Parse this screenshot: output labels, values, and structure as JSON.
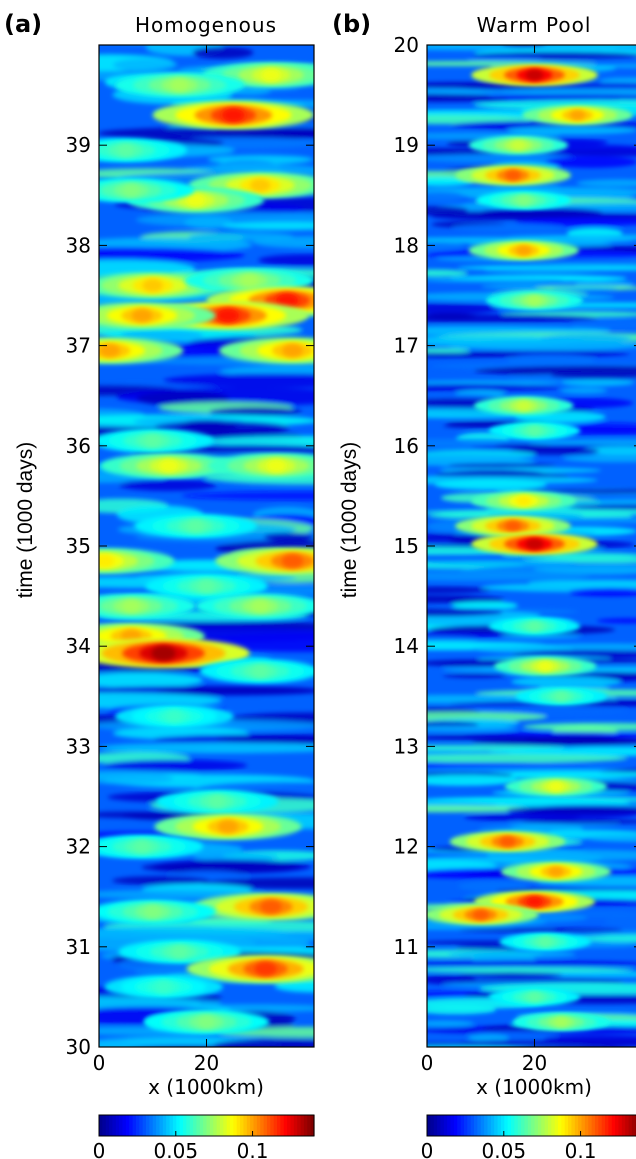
{
  "chart_data": [
    {
      "type": "heatmap",
      "panel_label": "(a)",
      "title": "Homogenous",
      "xlabel": "x (1000km)",
      "ylabel": "time (1000 days)",
      "xlim": [
        0,
        40
      ],
      "ylim": [
        30,
        40
      ],
      "xticks": [
        "0",
        "20"
      ],
      "yticks": [
        "30",
        "31",
        "32",
        "33",
        "34",
        "35",
        "36",
        "37",
        "38",
        "39"
      ],
      "colorbar": {
        "range": [
          0,
          0.14
        ],
        "ticks": [
          "0",
          "0.05",
          "0.1"
        ]
      },
      "colormap": [
        "#00008f",
        "#0000ff",
        "#0080ff",
        "#00ffff",
        "#80ff80",
        "#ffff00",
        "#ff8000",
        "#ff0000",
        "#800000"
      ],
      "blobs": [
        {
          "x": 25,
          "y": 39.3,
          "value": 0.12
        },
        {
          "x": 32,
          "y": 39.7,
          "value": 0.085
        },
        {
          "x": 15,
          "y": 39.6,
          "value": 0.075
        },
        {
          "x": 5,
          "y": 38.95,
          "value": 0.065
        },
        {
          "x": 30,
          "y": 38.6,
          "value": 0.095
        },
        {
          "x": 18,
          "y": 38.45,
          "value": 0.085
        },
        {
          "x": 6,
          "y": 38.55,
          "value": 0.07
        },
        {
          "x": 10,
          "y": 37.6,
          "value": 0.095
        },
        {
          "x": 28,
          "y": 37.65,
          "value": 0.075
        },
        {
          "x": 35,
          "y": 37.45,
          "value": 0.12
        },
        {
          "x": 24,
          "y": 37.3,
          "value": 0.12
        },
        {
          "x": 8,
          "y": 37.3,
          "value": 0.1
        },
        {
          "x": 36,
          "y": 36.95,
          "value": 0.1
        },
        {
          "x": 2,
          "y": 36.95,
          "value": 0.1
        },
        {
          "x": 10,
          "y": 36.05,
          "value": 0.065
        },
        {
          "x": 13,
          "y": 35.8,
          "value": 0.085
        },
        {
          "x": 33,
          "y": 35.8,
          "value": 0.085
        },
        {
          "x": 18,
          "y": 35.2,
          "value": 0.065
        },
        {
          "x": 36,
          "y": 34.85,
          "value": 0.11
        },
        {
          "x": 1,
          "y": 34.85,
          "value": 0.09
        },
        {
          "x": 20,
          "y": 34.6,
          "value": 0.065
        },
        {
          "x": 30,
          "y": 34.4,
          "value": 0.075
        },
        {
          "x": 6,
          "y": 34.4,
          "value": 0.075
        },
        {
          "x": 6,
          "y": 34.1,
          "value": 0.1
        },
        {
          "x": 12,
          "y": 33.93,
          "value": 0.135
        },
        {
          "x": 30,
          "y": 33.75,
          "value": 0.065
        },
        {
          "x": 14,
          "y": 33.3,
          "value": 0.06
        },
        {
          "x": 22,
          "y": 32.45,
          "value": 0.065
        },
        {
          "x": 24,
          "y": 32.2,
          "value": 0.1
        },
        {
          "x": 8,
          "y": 32.0,
          "value": 0.065
        },
        {
          "x": 32,
          "y": 31.4,
          "value": 0.11
        },
        {
          "x": 10,
          "y": 31.35,
          "value": 0.07
        },
        {
          "x": 15,
          "y": 30.95,
          "value": 0.065
        },
        {
          "x": 31,
          "y": 30.78,
          "value": 0.115
        },
        {
          "x": 20,
          "y": 30.25,
          "value": 0.07
        },
        {
          "x": 12,
          "y": 30.6,
          "value": 0.06
        }
      ]
    },
    {
      "type": "heatmap",
      "panel_label": "(b)",
      "title": "Warm Pool",
      "xlabel": "x (1000km)",
      "ylabel": "time (1000 days)",
      "xlim": [
        0,
        40
      ],
      "ylim": [
        10,
        20
      ],
      "xticks": [
        "0",
        "20"
      ],
      "yticks": [
        "11",
        "12",
        "13",
        "14",
        "15",
        "16",
        "17",
        "18",
        "19",
        "20"
      ],
      "colorbar": {
        "range": [
          0,
          0.14
        ],
        "ticks": [
          "0",
          "0.05",
          "0.1"
        ]
      },
      "colormap": [
        "#00008f",
        "#0000ff",
        "#0080ff",
        "#00ffff",
        "#80ff80",
        "#ffff00",
        "#ff8000",
        "#ff0000",
        "#800000"
      ],
      "blobs": [
        {
          "x": 20,
          "y": 19.7,
          "value": 0.13
        },
        {
          "x": 28,
          "y": 19.3,
          "value": 0.1
        },
        {
          "x": 17,
          "y": 19.0,
          "value": 0.08
        },
        {
          "x": 16,
          "y": 18.7,
          "value": 0.11
        },
        {
          "x": 18,
          "y": 18.45,
          "value": 0.07
        },
        {
          "x": 18,
          "y": 17.95,
          "value": 0.1
        },
        {
          "x": 20,
          "y": 17.45,
          "value": 0.075
        },
        {
          "x": 18,
          "y": 16.4,
          "value": 0.08
        },
        {
          "x": 20,
          "y": 16.15,
          "value": 0.065
        },
        {
          "x": 18,
          "y": 15.45,
          "value": 0.09
        },
        {
          "x": 16,
          "y": 15.2,
          "value": 0.11
        },
        {
          "x": 20,
          "y": 15.02,
          "value": 0.13
        },
        {
          "x": 20,
          "y": 14.2,
          "value": 0.065
        },
        {
          "x": 22,
          "y": 13.8,
          "value": 0.085
        },
        {
          "x": 25,
          "y": 13.5,
          "value": 0.065
        },
        {
          "x": 24,
          "y": 12.6,
          "value": 0.085
        },
        {
          "x": 15,
          "y": 12.05,
          "value": 0.11
        },
        {
          "x": 24,
          "y": 11.75,
          "value": 0.1
        },
        {
          "x": 20,
          "y": 11.45,
          "value": 0.12
        },
        {
          "x": 10,
          "y": 11.32,
          "value": 0.11
        },
        {
          "x": 22,
          "y": 11.05,
          "value": 0.065
        },
        {
          "x": 20,
          "y": 10.5,
          "value": 0.065
        },
        {
          "x": 25,
          "y": 10.25,
          "value": 0.075
        }
      ]
    }
  ]
}
